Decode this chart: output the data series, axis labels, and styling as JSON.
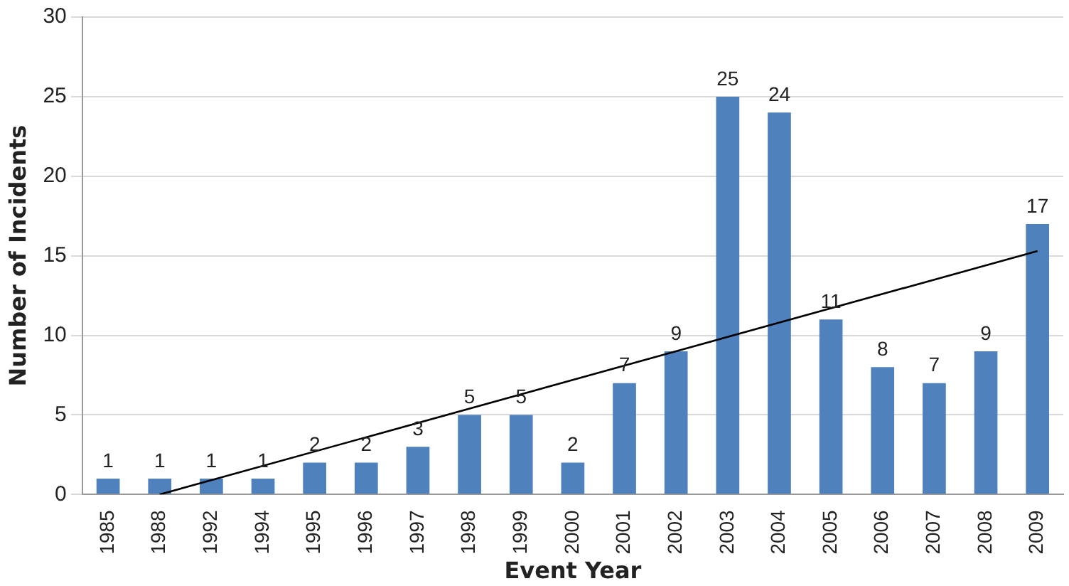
{
  "chart_data": {
    "type": "bar",
    "xlabel": "Event Year",
    "ylabel": "Number of Incidents",
    "categories": [
      "1985",
      "1988",
      "1992",
      "1994",
      "1995",
      "1996",
      "1997",
      "1998",
      "1999",
      "2000",
      "2001",
      "2002",
      "2003",
      "2004",
      "2005",
      "2006",
      "2007",
      "2008",
      "2009"
    ],
    "series": [
      {
        "color": "#4f81bd",
        "values": [
          1,
          1,
          1,
          1,
          2,
          2,
          3,
          5,
          5,
          2,
          7,
          9,
          25,
          24,
          11,
          8,
          7,
          9,
          17
        ],
        "value_labels": [
          "1",
          "1",
          "1",
          "1",
          "2",
          "2",
          "3",
          "5",
          "5",
          "2",
          "7",
          "9",
          "25",
          "24",
          "11",
          "8",
          "7",
          "9",
          "17"
        ]
      },
      {
        "type": "line",
        "color": "#000000",
        "values": [
          null,
          0,
          null,
          null,
          null,
          null,
          null,
          null,
          null,
          null,
          null,
          null,
          null,
          null,
          null,
          null,
          null,
          null,
          15.3
        ]
      }
    ],
    "ylim": [
      0,
      30
    ],
    "yticks": [
      0,
      5,
      10,
      15,
      20,
      25,
      30
    ],
    "grid": "y"
  }
}
